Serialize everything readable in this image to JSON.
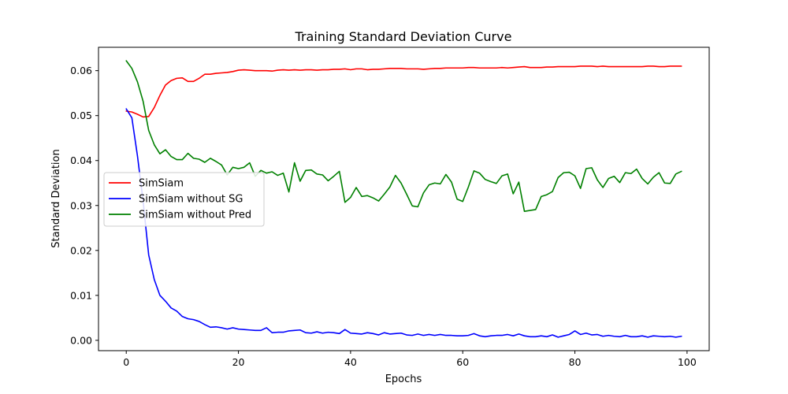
{
  "chart_data": {
    "type": "line",
    "title": "Training Standard Deviation Curve",
    "xlabel": "Epochs",
    "ylabel": "Standard Deviation",
    "xlim": [
      -4.95,
      103.95
    ],
    "ylim": [
      -0.0023,
      0.0652
    ],
    "xticks": [
      0,
      20,
      40,
      60,
      80,
      100
    ],
    "xtick_labels": [
      "0",
      "20",
      "40",
      "60",
      "80",
      "100"
    ],
    "yticks": [
      0.0,
      0.01,
      0.02,
      0.03,
      0.04,
      0.05,
      0.06
    ],
    "ytick_labels": [
      "0.00",
      "0.01",
      "0.02",
      "0.03",
      "0.04",
      "0.05",
      "0.06"
    ],
    "grid": false,
    "legend_position": "center-left",
    "x": [
      0,
      1,
      2,
      3,
      4,
      5,
      6,
      7,
      8,
      9,
      10,
      11,
      12,
      13,
      14,
      15,
      16,
      17,
      18,
      19,
      20,
      21,
      22,
      23,
      24,
      25,
      26,
      27,
      28,
      29,
      30,
      31,
      32,
      33,
      34,
      35,
      36,
      37,
      38,
      39,
      40,
      41,
      42,
      43,
      44,
      45,
      46,
      47,
      48,
      49,
      50,
      51,
      52,
      53,
      54,
      55,
      56,
      57,
      58,
      59,
      60,
      61,
      62,
      63,
      64,
      65,
      66,
      67,
      68,
      69,
      70,
      71,
      72,
      73,
      74,
      75,
      76,
      77,
      78,
      79,
      80,
      81,
      82,
      83,
      84,
      85,
      86,
      87,
      88,
      89,
      90,
      91,
      92,
      93,
      94,
      95,
      96,
      97,
      98,
      99
    ],
    "series": [
      {
        "name": "SimSiam",
        "color": "#ff0000",
        "values": [
          0.051,
          0.0508,
          0.0503,
          0.0497,
          0.0498,
          0.0518,
          0.0545,
          0.0568,
          0.0578,
          0.0583,
          0.0584,
          0.0576,
          0.0576,
          0.0583,
          0.0592,
          0.0592,
          0.0594,
          0.0595,
          0.0596,
          0.0598,
          0.0601,
          0.0602,
          0.0601,
          0.06,
          0.06,
          0.06,
          0.0599,
          0.0601,
          0.0602,
          0.0601,
          0.0602,
          0.0601,
          0.0602,
          0.0602,
          0.0601,
          0.0602,
          0.0602,
          0.0603,
          0.0603,
          0.0604,
          0.0602,
          0.0604,
          0.0604,
          0.0602,
          0.0603,
          0.0603,
          0.0604,
          0.0605,
          0.0605,
          0.0605,
          0.0604,
          0.0604,
          0.0604,
          0.0603,
          0.0604,
          0.0605,
          0.0605,
          0.0606,
          0.0606,
          0.0606,
          0.0606,
          0.0607,
          0.0607,
          0.0606,
          0.0606,
          0.0606,
          0.0606,
          0.0607,
          0.0606,
          0.0607,
          0.0608,
          0.0609,
          0.0607,
          0.0607,
          0.0607,
          0.0608,
          0.0608,
          0.0609,
          0.0609,
          0.0609,
          0.0609,
          0.061,
          0.061,
          0.061,
          0.0609,
          0.061,
          0.0609,
          0.0609,
          0.0609,
          0.0609,
          0.0609,
          0.0609,
          0.0609,
          0.061,
          0.061,
          0.0609,
          0.0609,
          0.061,
          0.061,
          0.061
        ]
      },
      {
        "name": "SimSiam without SG",
        "color": "#0000ff",
        "values": [
          0.0515,
          0.0495,
          0.041,
          0.031,
          0.019,
          0.0135,
          0.01,
          0.0087,
          0.0072,
          0.0065,
          0.0053,
          0.0048,
          0.0046,
          0.0042,
          0.0035,
          0.0029,
          0.003,
          0.0028,
          0.0025,
          0.0028,
          0.0025,
          0.0024,
          0.0023,
          0.0022,
          0.0022,
          0.0028,
          0.0017,
          0.0018,
          0.0018,
          0.0021,
          0.0022,
          0.0023,
          0.0017,
          0.0016,
          0.0019,
          0.0016,
          0.0018,
          0.0017,
          0.0015,
          0.0024,
          0.0016,
          0.0015,
          0.0014,
          0.0017,
          0.0015,
          0.0012,
          0.0017,
          0.0014,
          0.0015,
          0.0016,
          0.0012,
          0.0011,
          0.0014,
          0.0011,
          0.0013,
          0.0011,
          0.0013,
          0.0011,
          0.0011,
          0.001,
          0.001,
          0.0011,
          0.0015,
          0.001,
          0.0008,
          0.001,
          0.0011,
          0.0011,
          0.0013,
          0.001,
          0.0014,
          0.001,
          0.0008,
          0.0008,
          0.001,
          0.0008,
          0.0012,
          0.0007,
          0.001,
          0.0013,
          0.0021,
          0.0013,
          0.0016,
          0.0012,
          0.0013,
          0.0009,
          0.0011,
          0.0009,
          0.0008,
          0.0011,
          0.0008,
          0.0008,
          0.001,
          0.0007,
          0.001,
          0.0009,
          0.0008,
          0.0009,
          0.0007,
          0.0009
        ]
      },
      {
        "name": "SimSiam without Pred",
        "color": "#008000",
        "values": [
          0.0622,
          0.0605,
          0.0575,
          0.0532,
          0.0467,
          0.0435,
          0.0415,
          0.0424,
          0.0409,
          0.0402,
          0.0402,
          0.0416,
          0.0405,
          0.0403,
          0.0396,
          0.0405,
          0.0398,
          0.039,
          0.0368,
          0.0385,
          0.0382,
          0.0385,
          0.0395,
          0.0365,
          0.0378,
          0.0372,
          0.0375,
          0.0367,
          0.0372,
          0.033,
          0.0395,
          0.0354,
          0.0378,
          0.0379,
          0.037,
          0.0368,
          0.0355,
          0.0365,
          0.0376,
          0.0307,
          0.0318,
          0.034,
          0.032,
          0.0322,
          0.0317,
          0.031,
          0.0325,
          0.0341,
          0.0367,
          0.035,
          0.0325,
          0.0299,
          0.0297,
          0.0328,
          0.0346,
          0.035,
          0.0348,
          0.0369,
          0.0352,
          0.0314,
          0.0309,
          0.0341,
          0.0377,
          0.0372,
          0.0358,
          0.0353,
          0.0349,
          0.0366,
          0.037,
          0.0326,
          0.0352,
          0.0287,
          0.0289,
          0.0291,
          0.032,
          0.0324,
          0.0331,
          0.0362,
          0.0373,
          0.0374,
          0.0366,
          0.0338,
          0.0382,
          0.0384,
          0.0357,
          0.034,
          0.036,
          0.0365,
          0.0351,
          0.0373,
          0.0371,
          0.0381,
          0.036,
          0.0348,
          0.0363,
          0.0373,
          0.035,
          0.0349,
          0.037,
          0.0376
        ]
      }
    ]
  }
}
